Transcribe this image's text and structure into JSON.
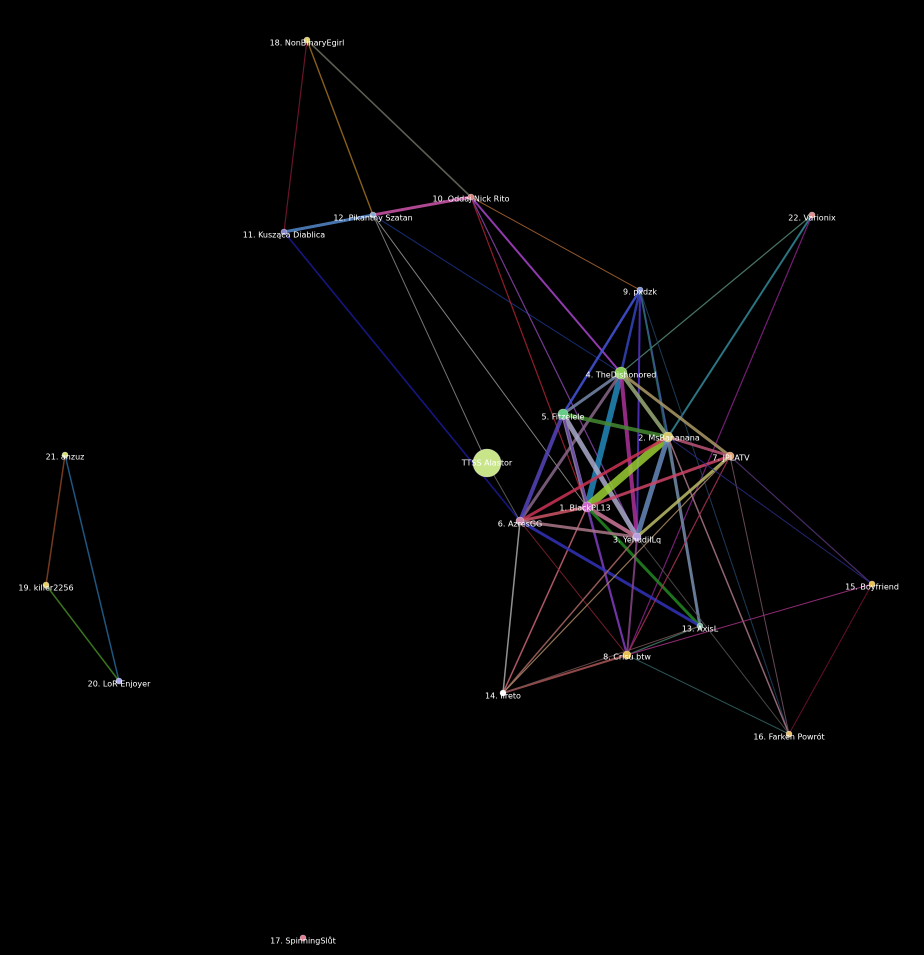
{
  "graph": {
    "nodes": [
      {
        "id": "tts",
        "label": "TTSS Alastor",
        "color": "#c9e58a"
      },
      {
        "id": "n1",
        "label": "1. BlackPL13",
        "color": "#cc66cc"
      },
      {
        "id": "n2",
        "label": "2. MsBananana",
        "color": "#d8c86a"
      },
      {
        "id": "n3",
        "label": "3. YehudiILq",
        "color": "#b8a0e0"
      },
      {
        "id": "n4",
        "label": "4. TheDishonored",
        "color": "#88cc55"
      },
      {
        "id": "n5",
        "label": "5. Fitzelele",
        "color": "#66cc88"
      },
      {
        "id": "n6",
        "label": "6. AzresGG",
        "color": "#cc88aa"
      },
      {
        "id": "n7",
        "label": "7. JPLATV",
        "color": "#e0a070"
      },
      {
        "id": "n8",
        "label": "8. Crisu btw",
        "color": "#e8c050"
      },
      {
        "id": "n9",
        "label": "9. pxdzk",
        "color": "#8899dd"
      },
      {
        "id": "n10",
        "label": "10. Oddaj Nick Rito",
        "color": "#e08080"
      },
      {
        "id": "n11",
        "label": "11. Kusząca Diablica",
        "color": "#8888cc"
      },
      {
        "id": "n12",
        "label": "12. Pikantny Szatan",
        "color": "#88aacc"
      },
      {
        "id": "n13",
        "label": "13. AxisL",
        "color": "#88bbaa"
      },
      {
        "id": "n14",
        "label": "14. Ilreto",
        "color": "#ffffff"
      },
      {
        "id": "n15",
        "label": "15. Boyfriend",
        "color": "#e8c050"
      },
      {
        "id": "n16",
        "label": "16. Farken Powrót",
        "color": "#e8c070"
      },
      {
        "id": "n17",
        "label": "17. SpinningSlůt",
        "color": "#e08090"
      },
      {
        "id": "n18",
        "label": "18. NonBinaryEgirl",
        "color": "#e0d070"
      },
      {
        "id": "n19",
        "label": "19. killer2256",
        "color": "#e8d060"
      },
      {
        "id": "n20",
        "label": "20. LoR Enjoyer",
        "color": "#aaaaee"
      },
      {
        "id": "n21",
        "label": "21. anzuz",
        "color": "#d8e070"
      },
      {
        "id": "n22",
        "label": "22. Varionix",
        "color": "#e09090"
      }
    ],
    "edges": [
      {
        "a": "n18",
        "b": "n11",
        "color": "#7a1830",
        "w": 1.2
      },
      {
        "a": "n18",
        "b": "n12",
        "color": "#a07020",
        "w": 1.4
      },
      {
        "a": "n18",
        "b": "n10",
        "color": "#6a7060",
        "w": 1.6
      },
      {
        "a": "n12",
        "b": "n10",
        "color": "#cc55aa",
        "w": 3
      },
      {
        "a": "n11",
        "b": "n12",
        "color": "#5588cc",
        "w": 3
      },
      {
        "a": "n11",
        "b": "n6",
        "color": "#1a1a99",
        "w": 1.6
      },
      {
        "a": "n12",
        "b": "n4",
        "color": "#1a3388",
        "w": 1
      },
      {
        "a": "n12",
        "b": "tts",
        "color": "#888888",
        "w": 1
      },
      {
        "a": "n12",
        "b": "n1",
        "color": "#999999",
        "w": 1
      },
      {
        "a": "n10",
        "b": "n4",
        "color": "#aa44cc",
        "w": 2
      },
      {
        "a": "n10",
        "b": "n9",
        "color": "#aa6633",
        "w": 1
      },
      {
        "a": "n10",
        "b": "n1",
        "color": "#aa2233",
        "w": 1.2
      },
      {
        "a": "n10",
        "b": "n3",
        "color": "#8844aa",
        "w": 1.2
      },
      {
        "a": "n22",
        "b": "n4",
        "color": "#558877",
        "w": 1.2
      },
      {
        "a": "n22",
        "b": "n2",
        "color": "#338899",
        "w": 2
      },
      {
        "a": "n22",
        "b": "n8",
        "color": "#882288",
        "w": 1.2
      },
      {
        "a": "n9",
        "b": "n5",
        "color": "#4455dd",
        "w": 2.5
      },
      {
        "a": "n9",
        "b": "n4",
        "color": "#3344bb",
        "w": 2.5
      },
      {
        "a": "n9",
        "b": "n3",
        "color": "#5533cc",
        "w": 2
      },
      {
        "a": "n9",
        "b": "n2",
        "color": "#4466aa",
        "w": 2
      },
      {
        "a": "n9",
        "b": "n13",
        "color": "#226655",
        "w": 1
      },
      {
        "a": "n9",
        "b": "n16",
        "color": "#224466",
        "w": 1
      },
      {
        "a": "n4",
        "b": "n1",
        "color": "#2288bb",
        "w": 6
      },
      {
        "a": "n4",
        "b": "n5",
        "color": "#7788aa",
        "w": 3
      },
      {
        "a": "n4",
        "b": "n3",
        "color": "#aa3399",
        "w": 4
      },
      {
        "a": "n4",
        "b": "n2",
        "color": "#99aa77",
        "w": 4
      },
      {
        "a": "n4",
        "b": "n7",
        "color": "#aa9966",
        "w": 3
      },
      {
        "a": "n4",
        "b": "n6",
        "color": "#886688",
        "w": 3
      },
      {
        "a": "n5",
        "b": "n2",
        "color": "#448833",
        "w": 4
      },
      {
        "a": "n5",
        "b": "n3",
        "color": "#aaaacc",
        "w": 5
      },
      {
        "a": "n5",
        "b": "n1",
        "color": "#9988aa",
        "w": 4
      },
      {
        "a": "n5",
        "b": "n6",
        "color": "#5544bb",
        "w": 4
      },
      {
        "a": "n5",
        "b": "n8",
        "color": "#6644aa",
        "w": 2
      },
      {
        "a": "n2",
        "b": "n1",
        "color": "#99cc33",
        "w": 8
      },
      {
        "a": "n2",
        "b": "n3",
        "color": "#6688bb",
        "w": 5
      },
      {
        "a": "n2",
        "b": "n6",
        "color": "#cc3355",
        "w": 3
      },
      {
        "a": "n2",
        "b": "n13",
        "color": "#7788aa",
        "w": 3
      },
      {
        "a": "n2",
        "b": "n7",
        "color": "#bb5577",
        "w": 3
      },
      {
        "a": "n2",
        "b": "n16",
        "color": "#aa7788",
        "w": 1.5
      },
      {
        "a": "n1",
        "b": "n3",
        "color": "#cc7799",
        "w": 4
      },
      {
        "a": "n1",
        "b": "n6",
        "color": "#cc5566",
        "w": 3
      },
      {
        "a": "n1",
        "b": "n7",
        "color": "#cc4466",
        "w": 3
      },
      {
        "a": "n1",
        "b": "n13",
        "color": "#228822",
        "w": 3
      },
      {
        "a": "n1",
        "b": "n8",
        "color": "#7733aa",
        "w": 2
      },
      {
        "a": "n1",
        "b": "n14",
        "color": "#cc6677",
        "w": 1.5
      },
      {
        "a": "n6",
        "b": "n3",
        "color": "#aa7788",
        "w": 3
      },
      {
        "a": "n6",
        "b": "n14",
        "color": "#aaaaaa",
        "w": 1.5
      },
      {
        "a": "n6",
        "b": "n8",
        "color": "#882233",
        "w": 1
      },
      {
        "a": "n6",
        "b": "n13",
        "color": "#3333bb",
        "w": 3
      },
      {
        "a": "tts",
        "b": "n6",
        "color": "#666666",
        "w": 1
      },
      {
        "a": "n3",
        "b": "n7",
        "color": "#bbbb66",
        "w": 3
      },
      {
        "a": "n3",
        "b": "n8",
        "color": "#884488",
        "w": 2
      },
      {
        "a": "n3",
        "b": "n14",
        "color": "#aa6666",
        "w": 1.5
      },
      {
        "a": "n3",
        "b": "n16",
        "color": "#555555",
        "w": 1
      },
      {
        "a": "n7",
        "b": "n15",
        "color": "#553377",
        "w": 1.2
      },
      {
        "a": "n7",
        "b": "n8",
        "color": "#aa3355",
        "w": 1.2
      },
      {
        "a": "n7",
        "b": "n14",
        "color": "#aa8866",
        "w": 1.2
      },
      {
        "a": "n7",
        "b": "n16",
        "color": "#775566",
        "w": 1
      },
      {
        "a": "n2",
        "b": "n15",
        "color": "#2a2a88",
        "w": 1
      },
      {
        "a": "n8",
        "b": "n13",
        "color": "#447766",
        "w": 1.2
      },
      {
        "a": "n8",
        "b": "n14",
        "color": "#aa5555",
        "w": 2
      },
      {
        "a": "n8",
        "b": "n16",
        "color": "#336666",
        "w": 1
      },
      {
        "a": "n8",
        "b": "n15",
        "color": "#aa3388",
        "w": 1
      },
      {
        "a": "n14",
        "b": "n13",
        "color": "#775555",
        "w": 1
      },
      {
        "a": "n16",
        "b": "n15",
        "color": "#771133",
        "w": 1
      },
      {
        "a": "n21",
        "b": "n19",
        "color": "#884422",
        "w": 1.5
      },
      {
        "a": "n21",
        "b": "n20",
        "color": "#226699",
        "w": 1.5
      },
      {
        "a": "n19",
        "b": "n20",
        "color": "#448822",
        "w": 1.5
      }
    ]
  }
}
